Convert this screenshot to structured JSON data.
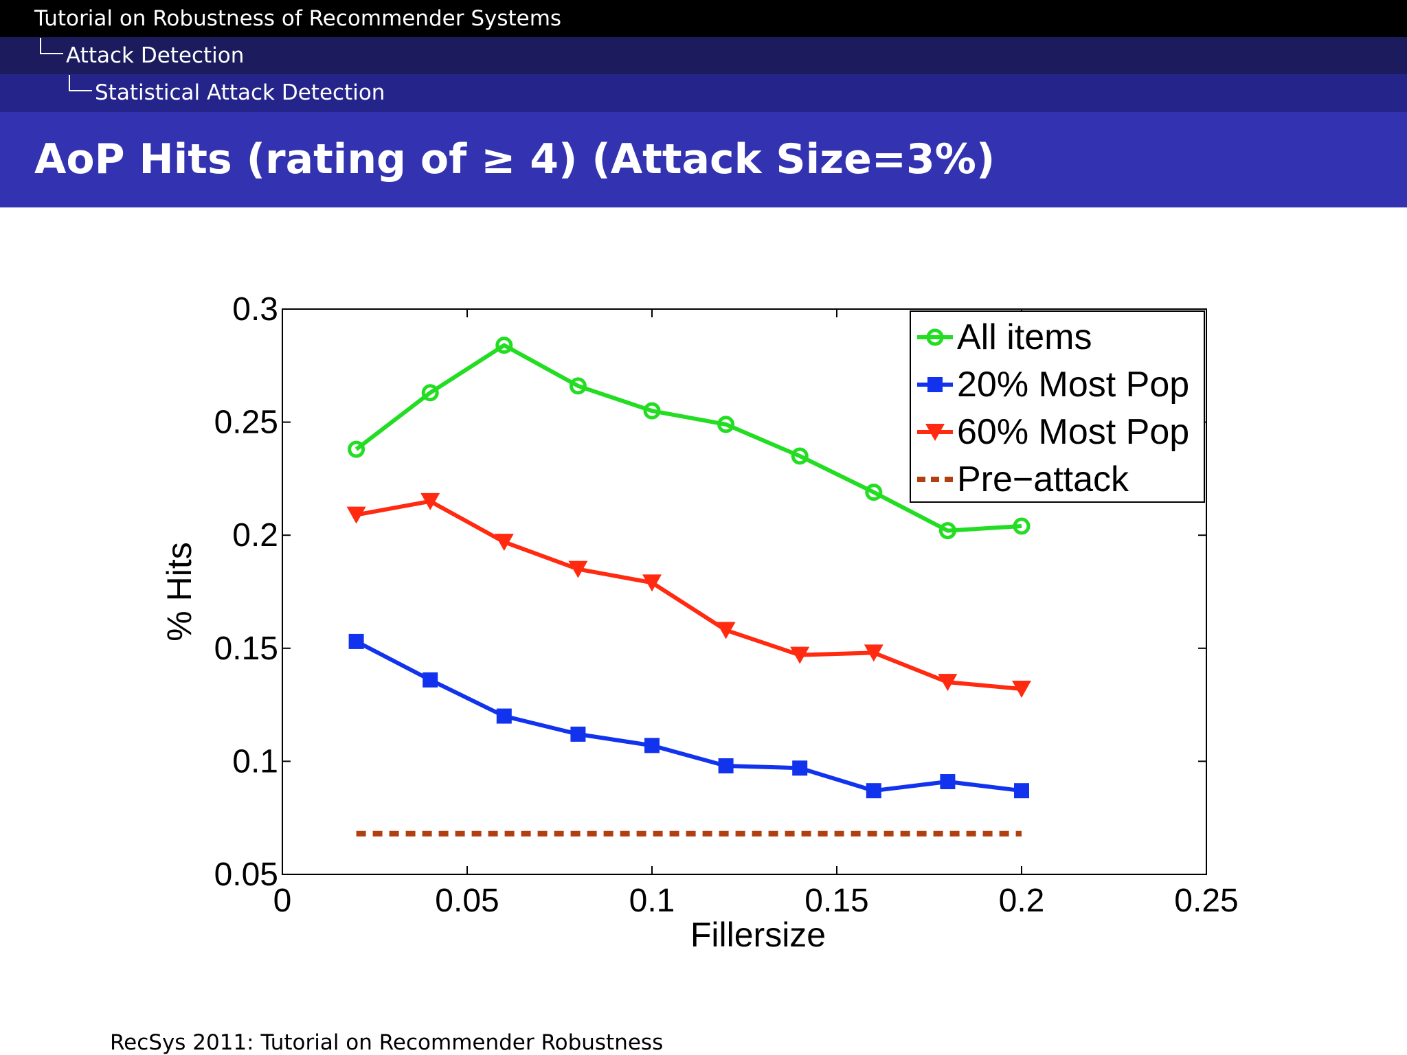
{
  "header": {
    "breadcrumb_1": "Tutorial on Robustness of Recommender Systems",
    "breadcrumb_2": "Attack Detection",
    "breadcrumb_3": "Statistical Attack Detection"
  },
  "slide": {
    "title": "AoP Hits (rating of ≥ 4) (Attack Size=3%)"
  },
  "footer": {
    "text": "RecSys 2011: Tutorial on Recommender Robustness"
  },
  "chart_data": {
    "type": "line",
    "title": "",
    "xlabel": "Fillersize",
    "ylabel": "% Hits",
    "xlim": [
      0,
      0.25
    ],
    "ylim": [
      0.05,
      0.3
    ],
    "xticks": [
      0,
      0.05,
      0.1,
      0.15,
      0.2,
      0.25
    ],
    "xtick_labels": [
      "0",
      "0.05",
      "0.1",
      "0.15",
      "0.2",
      "0.25"
    ],
    "yticks": [
      0.05,
      0.1,
      0.15,
      0.2,
      0.25,
      0.3
    ],
    "ytick_labels": [
      "0.05",
      "0.1",
      "0.15",
      "0.2",
      "0.25",
      "0.3"
    ],
    "grid": false,
    "legend_position": "top-right",
    "x": [
      0.02,
      0.04,
      0.06,
      0.08,
      0.1,
      0.12,
      0.14,
      0.16,
      0.18,
      0.2
    ],
    "series": [
      {
        "name": "All items",
        "color": "#22dd22",
        "marker": "circle",
        "values": [
          0.238,
          0.263,
          0.284,
          0.266,
          0.255,
          0.249,
          0.235,
          0.219,
          0.202,
          0.204
        ]
      },
      {
        "name": "20% Most Pop",
        "color": "#1133ee",
        "marker": "square",
        "values": [
          0.153,
          0.136,
          0.12,
          0.112,
          0.107,
          0.098,
          0.097,
          0.087,
          0.091,
          0.087
        ]
      },
      {
        "name": "60% Most Pop",
        "color": "#ff2a10",
        "marker": "triangle-down",
        "values": [
          0.209,
          0.215,
          0.197,
          0.185,
          0.179,
          0.158,
          0.147,
          0.148,
          0.135,
          0.132
        ]
      },
      {
        "name": "Pre−attack",
        "color": "#b04010",
        "marker": "none",
        "dashed": true,
        "values": [
          0.068,
          0.068,
          0.068,
          0.068,
          0.068,
          0.068,
          0.068,
          0.068,
          0.068,
          0.068
        ]
      }
    ]
  }
}
